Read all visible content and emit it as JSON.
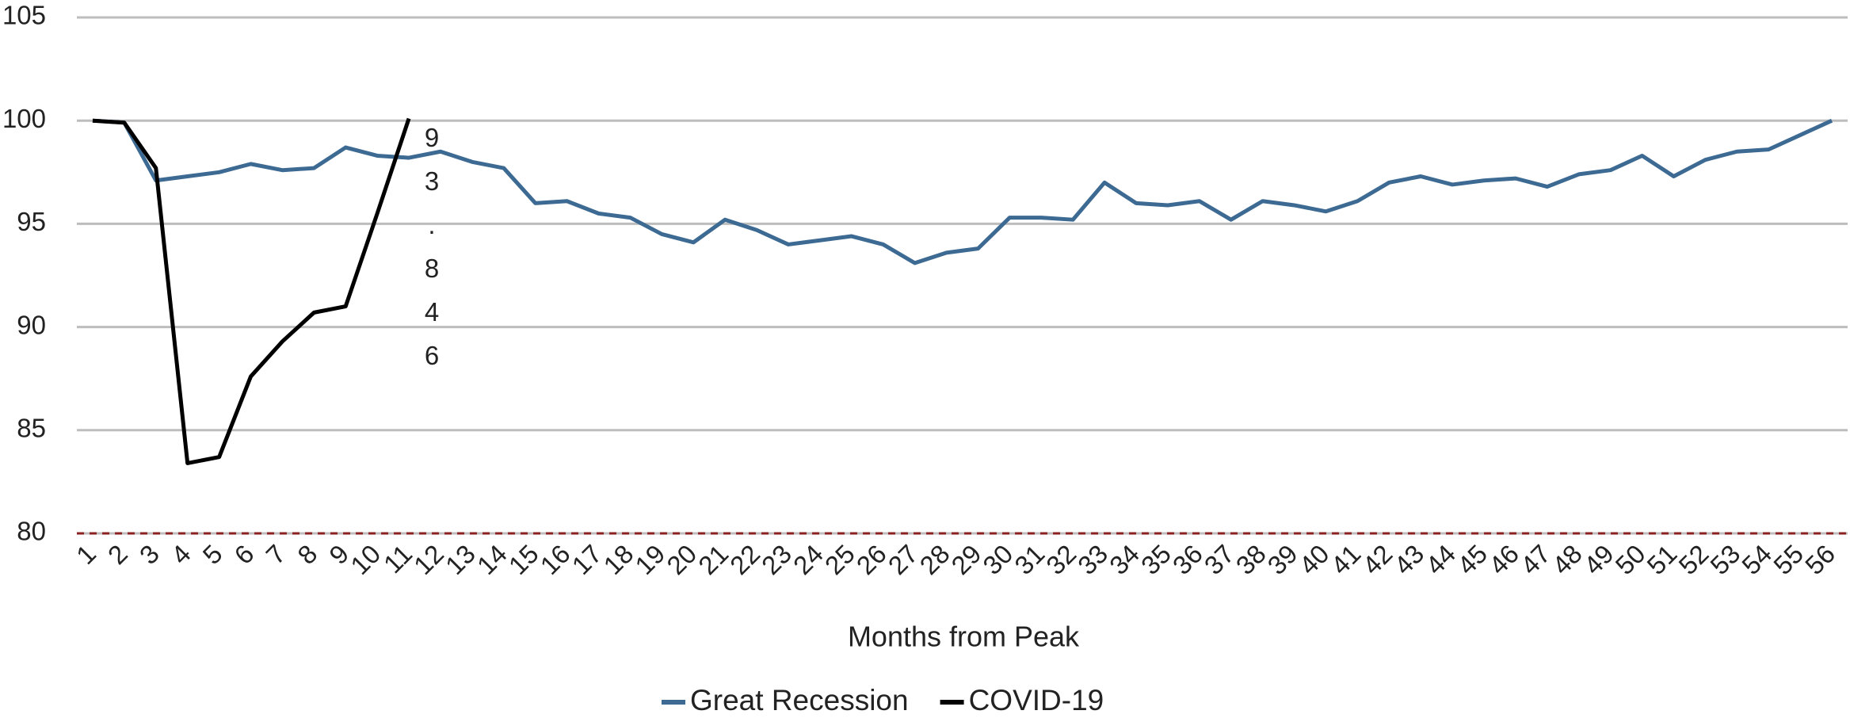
{
  "chart_data": {
    "type": "line",
    "x_label": "Months from Peak",
    "annotation": "93.846",
    "categories": [
      "1",
      "2",
      "3",
      "4",
      "5",
      "6",
      "7",
      "8",
      "9",
      "10",
      "11",
      "12",
      "13",
      "14",
      "15",
      "16",
      "17",
      "18",
      "19",
      "20",
      "21",
      "22",
      "23",
      "24",
      "25",
      "26",
      "27",
      "28",
      "29",
      "30",
      "31",
      "32",
      "33",
      "34",
      "35",
      "36",
      "37",
      "38",
      "39",
      "40",
      "41",
      "42",
      "43",
      "44",
      "45",
      "46",
      "47",
      "48",
      "49",
      "50",
      "51",
      "52",
      "53",
      "54",
      "55",
      "56"
    ],
    "series": [
      {
        "name": "Great Recession",
        "color": "#3d6a92",
        "values": [
          100,
          99.9,
          97.1,
          97.3,
          97.5,
          97.9,
          97.6,
          97.7,
          98.7,
          98.3,
          98.2,
          98.5,
          98.0,
          97.7,
          96.0,
          96.1,
          95.5,
          95.3,
          94.5,
          94.1,
          95.2,
          94.7,
          94.0,
          94.2,
          94.4,
          94.0,
          93.1,
          93.6,
          93.8,
          95.3,
          95.3,
          95.2,
          97.0,
          96.0,
          95.9,
          96.1,
          95.2,
          96.1,
          95.9,
          95.6,
          96.1,
          97.0,
          97.3,
          96.9,
          97.1,
          97.2,
          96.8,
          97.4,
          97.6,
          98.3,
          97.3,
          98.1,
          98.5,
          98.6,
          99.3,
          100.0
        ]
      },
      {
        "name": "COVID-19",
        "color": "#000000",
        "values": [
          100,
          99.9,
          97.7,
          83.4,
          83.7,
          87.6,
          89.3,
          90.7,
          91.0,
          95.5,
          100.1,
          null,
          null,
          null,
          null,
          null,
          null,
          null,
          null,
          null,
          null,
          null,
          null,
          null,
          null,
          null,
          null,
          null,
          null,
          null,
          null,
          null,
          null,
          null,
          null,
          null,
          null,
          null,
          null,
          null,
          null,
          null,
          null,
          null,
          null,
          null,
          null,
          null,
          null,
          null,
          null,
          null,
          null,
          null,
          null,
          null
        ]
      }
    ],
    "ylim": [
      80,
      105
    ],
    "yticks": [
      80,
      85,
      90,
      95,
      100,
      105
    ],
    "grid": true,
    "legend": "bottom"
  }
}
